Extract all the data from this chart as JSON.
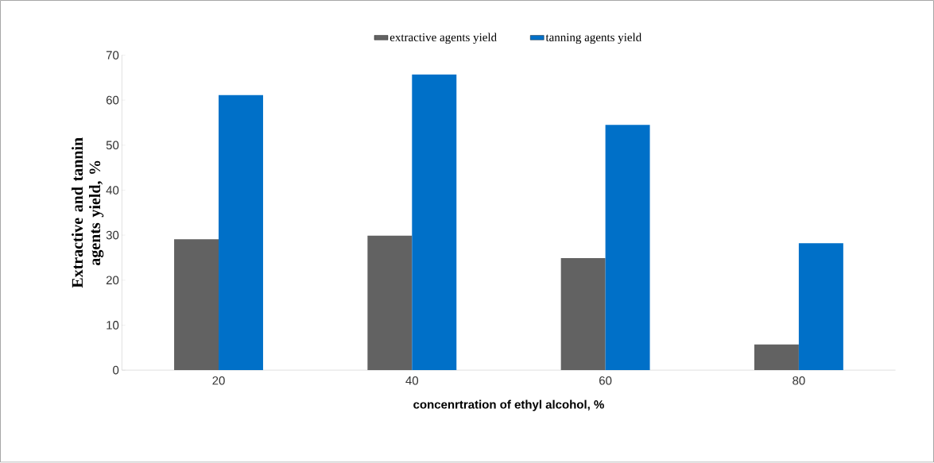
{
  "chart_data": {
    "type": "bar",
    "xlabel": "concenrtration of  ethyl   alcohol, %",
    "ylabel": "Extractive and tannin agents yield, %",
    "categories": [
      "20",
      "40",
      "60",
      "80"
    ],
    "series": [
      {
        "name": "extractive agents yield",
        "color": "#626262",
        "values": [
          29.1,
          29.9,
          24.9,
          5.7
        ]
      },
      {
        "name": "tanning agents yield",
        "color": "#0070c8",
        "values": [
          61.1,
          65.7,
          54.5,
          28.2
        ]
      }
    ],
    "ylim": [
      0,
      70
    ],
    "yticks": [
      0,
      10,
      20,
      30,
      40,
      50,
      60,
      70
    ],
    "grid": false,
    "legend": "top"
  }
}
